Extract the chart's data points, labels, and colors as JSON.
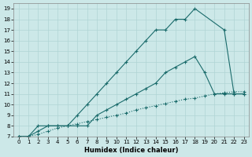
{
  "xlabel": "Humidex (Indice chaleur)",
  "background_color": "#cce8e8",
  "line_color": "#1a6b6b",
  "grid_color": "#b0d4d4",
  "xlim": [
    -0.5,
    23.5
  ],
  "ylim": [
    7,
    19.5
  ],
  "xticks": [
    0,
    1,
    2,
    3,
    4,
    5,
    6,
    7,
    8,
    9,
    10,
    11,
    12,
    13,
    14,
    15,
    16,
    17,
    18,
    19,
    20,
    21,
    22,
    23
  ],
  "yticks": [
    7,
    8,
    9,
    10,
    11,
    12,
    13,
    14,
    15,
    16,
    17,
    18,
    19
  ],
  "curve1_x": [
    0,
    1,
    2,
    3,
    4,
    5,
    6,
    7,
    8,
    9,
    10,
    11,
    12,
    13,
    14,
    15,
    16,
    17,
    18,
    21,
    22,
    23
  ],
  "curve1_y": [
    7,
    7,
    8,
    8,
    8,
    8,
    9,
    10,
    11,
    12,
    13,
    14,
    15,
    16,
    17,
    17,
    18,
    18,
    19,
    17,
    11,
    11
  ],
  "curve2_x": [
    0,
    1,
    2,
    3,
    4,
    5,
    6,
    7,
    8,
    9,
    10,
    11,
    12,
    13,
    14,
    15,
    16,
    17,
    18,
    19,
    20,
    21,
    22,
    23
  ],
  "curve2_y": [
    7,
    7,
    7.5,
    8,
    8,
    8,
    8,
    8,
    9,
    9.5,
    10,
    10.5,
    11,
    11.5,
    12,
    13,
    13.5,
    14,
    14.5,
    13,
    11,
    11,
    11,
    11
  ],
  "curve3_x": [
    0,
    1,
    2,
    3,
    4,
    5,
    6,
    7,
    8,
    9,
    10,
    11,
    12,
    13,
    14,
    15,
    16,
    17,
    18,
    19,
    20,
    21,
    22,
    23
  ],
  "curve3_y": [
    7,
    7,
    7.2,
    7.5,
    7.8,
    8,
    8.2,
    8.4,
    8.6,
    8.8,
    9,
    9.2,
    9.5,
    9.7,
    9.9,
    10.1,
    10.3,
    10.5,
    10.6,
    10.8,
    11,
    11.1,
    11.2,
    11.2
  ],
  "marker": "+",
  "linewidth": 0.8,
  "markersize": 3.5,
  "tick_fontsize": 5,
  "xlabel_fontsize": 6
}
